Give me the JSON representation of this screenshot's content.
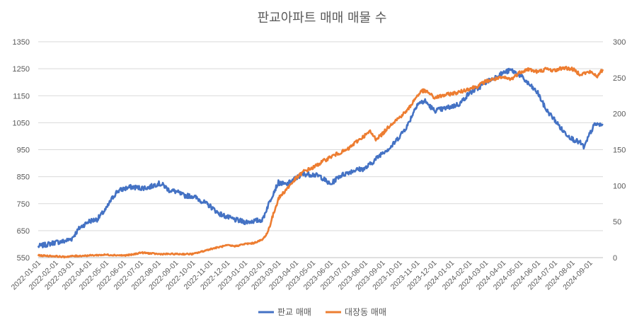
{
  "chart_data": {
    "type": "line",
    "title": "판교아파트 매매 매물 수",
    "xlabel": "",
    "ylabel": "",
    "y_left": {
      "ticks": [
        550,
        650,
        750,
        850,
        950,
        1050,
        1150,
        1250,
        1350
      ],
      "ylim": [
        550,
        1350
      ]
    },
    "y_right": {
      "ticks": [
        0,
        50,
        100,
        150,
        200,
        250,
        300
      ],
      "ylim": [
        0,
        300
      ]
    },
    "x_ticks": [
      "2022-01-01",
      "2022-02-01",
      "2022-03-01",
      "2022-04-01",
      "2022-05-01",
      "2022-06-01",
      "2022-07-01",
      "2022-08-01",
      "2022-09-01",
      "2022-10-01",
      "2022-11-01",
      "2022-12-01",
      "2023-01-01",
      "2023-02-01",
      "2023-03-01",
      "2023-04-01",
      "2023-05-01",
      "2023-06-01",
      "2023-07-01",
      "2023-08-01",
      "2023-09-01",
      "2023-10-01",
      "2023-11-01",
      "2023-12-01",
      "2024-01-01",
      "2024-02-01",
      "2024-03-01",
      "2024-04-01",
      "2024-05-01",
      "2024-06-01",
      "2024-07-01",
      "2024-08-01",
      "2024-09-01"
    ],
    "x_range": [
      "2022-01-01",
      "2024-09-24"
    ],
    "grid": true,
    "legend": "bottom",
    "series": [
      {
        "name": "판교 매매",
        "axis": "left",
        "color": "#4472c4",
        "points": [
          [
            "2022-01-01",
            592
          ],
          [
            "2022-01-15",
            598
          ],
          [
            "2022-02-01",
            607
          ],
          [
            "2022-02-15",
            610
          ],
          [
            "2022-03-01",
            620
          ],
          [
            "2022-03-15",
            660
          ],
          [
            "2022-04-01",
            685
          ],
          [
            "2022-04-15",
            692
          ],
          [
            "2022-05-01",
            730
          ],
          [
            "2022-05-10",
            765
          ],
          [
            "2022-05-20",
            795
          ],
          [
            "2022-06-01",
            805
          ],
          [
            "2022-06-15",
            812
          ],
          [
            "2022-07-01",
            808
          ],
          [
            "2022-07-15",
            810
          ],
          [
            "2022-08-01",
            825
          ],
          [
            "2022-08-10",
            818
          ],
          [
            "2022-08-20",
            800
          ],
          [
            "2022-09-01",
            795
          ],
          [
            "2022-09-15",
            780
          ],
          [
            "2022-10-01",
            778
          ],
          [
            "2022-10-15",
            762
          ],
          [
            "2022-11-01",
            740
          ],
          [
            "2022-11-15",
            715
          ],
          [
            "2022-12-01",
            700
          ],
          [
            "2022-12-15",
            690
          ],
          [
            "2023-01-01",
            682
          ],
          [
            "2023-01-15",
            685
          ],
          [
            "2023-02-01",
            690
          ],
          [
            "2023-02-10",
            740
          ],
          [
            "2023-02-20",
            790
          ],
          [
            "2023-03-01",
            828
          ],
          [
            "2023-03-15",
            820
          ],
          [
            "2023-04-01",
            845
          ],
          [
            "2023-04-15",
            860
          ],
          [
            "2023-05-01",
            858
          ],
          [
            "2023-05-15",
            850
          ],
          [
            "2023-06-01",
            820
          ],
          [
            "2023-06-15",
            850
          ],
          [
            "2023-07-01",
            865
          ],
          [
            "2023-07-15",
            875
          ],
          [
            "2023-08-01",
            880
          ],
          [
            "2023-08-15",
            905
          ],
          [
            "2023-09-01",
            940
          ],
          [
            "2023-09-15",
            958
          ],
          [
            "2023-10-01",
            1000
          ],
          [
            "2023-10-15",
            1040
          ],
          [
            "2023-11-01",
            1120
          ],
          [
            "2023-11-15",
            1130
          ],
          [
            "2023-12-01",
            1095
          ],
          [
            "2023-12-15",
            1100
          ],
          [
            "2024-01-01",
            1110
          ],
          [
            "2024-01-15",
            1120
          ],
          [
            "2024-02-01",
            1160
          ],
          [
            "2024-02-15",
            1175
          ],
          [
            "2024-03-01",
            1200
          ],
          [
            "2024-03-15",
            1215
          ],
          [
            "2024-04-01",
            1235
          ],
          [
            "2024-04-15",
            1245
          ],
          [
            "2024-05-01",
            1225
          ],
          [
            "2024-05-15",
            1195
          ],
          [
            "2024-06-01",
            1160
          ],
          [
            "2024-06-15",
            1100
          ],
          [
            "2024-07-01",
            1060
          ],
          [
            "2024-07-15",
            1020
          ],
          [
            "2024-08-01",
            990
          ],
          [
            "2024-08-15",
            975
          ],
          [
            "2024-08-22",
            958
          ],
          [
            "2024-09-01",
            1010
          ],
          [
            "2024-09-10",
            1045
          ],
          [
            "2024-09-24",
            1040
          ]
        ]
      },
      {
        "name": "대장동 매매",
        "axis": "right",
        "color": "#ed7d31",
        "points": [
          [
            "2022-01-01",
            3
          ],
          [
            "2022-02-01",
            2
          ],
          [
            "2022-02-15",
            1
          ],
          [
            "2022-03-01",
            2
          ],
          [
            "2022-04-01",
            3
          ],
          [
            "2022-05-01",
            4
          ],
          [
            "2022-06-01",
            3
          ],
          [
            "2022-06-15",
            4
          ],
          [
            "2022-07-01",
            7
          ],
          [
            "2022-08-01",
            5
          ],
          [
            "2022-09-01",
            5
          ],
          [
            "2022-10-01",
            5
          ],
          [
            "2022-10-15",
            8
          ],
          [
            "2022-11-01",
            12
          ],
          [
            "2022-12-01",
            17
          ],
          [
            "2022-12-15",
            16
          ],
          [
            "2023-01-01",
            19
          ],
          [
            "2023-01-15",
            20
          ],
          [
            "2023-02-01",
            25
          ],
          [
            "2023-02-10",
            35
          ],
          [
            "2023-02-20",
            60
          ],
          [
            "2023-03-01",
            82
          ],
          [
            "2023-03-15",
            95
          ],
          [
            "2023-04-01",
            110
          ],
          [
            "2023-04-15",
            120
          ],
          [
            "2023-05-01",
            125
          ],
          [
            "2023-05-15",
            132
          ],
          [
            "2023-06-01",
            140
          ],
          [
            "2023-06-15",
            145
          ],
          [
            "2023-07-01",
            150
          ],
          [
            "2023-07-15",
            160
          ],
          [
            "2023-08-01",
            170
          ],
          [
            "2023-08-10",
            175
          ],
          [
            "2023-08-20",
            165
          ],
          [
            "2023-09-01",
            172
          ],
          [
            "2023-09-15",
            185
          ],
          [
            "2023-10-01",
            195
          ],
          [
            "2023-10-15",
            205
          ],
          [
            "2023-11-01",
            225
          ],
          [
            "2023-11-10",
            232
          ],
          [
            "2023-11-20",
            230
          ],
          [
            "2023-12-01",
            222
          ],
          [
            "2023-12-15",
            225
          ],
          [
            "2024-01-01",
            228
          ],
          [
            "2024-01-15",
            230
          ],
          [
            "2024-02-01",
            235
          ],
          [
            "2024-02-15",
            238
          ],
          [
            "2024-03-01",
            245
          ],
          [
            "2024-03-15",
            248
          ],
          [
            "2024-04-01",
            250
          ],
          [
            "2024-04-15",
            248
          ],
          [
            "2024-05-01",
            258
          ],
          [
            "2024-05-15",
            262
          ],
          [
            "2024-06-01",
            258
          ],
          [
            "2024-06-15",
            262
          ],
          [
            "2024-07-01",
            260
          ],
          [
            "2024-07-15",
            264
          ],
          [
            "2024-08-01",
            262
          ],
          [
            "2024-08-15",
            255
          ],
          [
            "2024-09-01",
            258
          ],
          [
            "2024-09-15",
            252
          ],
          [
            "2024-09-24",
            262
          ]
        ]
      }
    ]
  }
}
